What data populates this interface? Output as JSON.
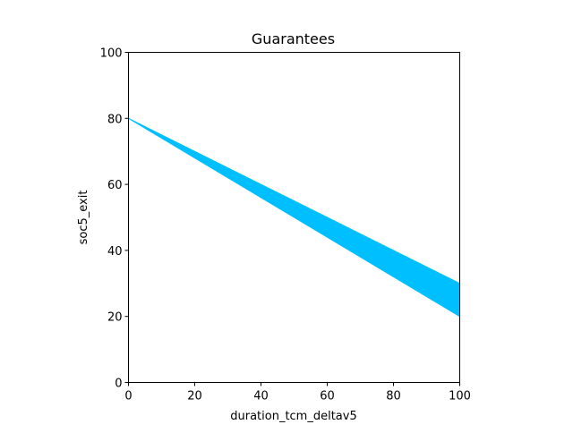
{
  "chart_data": {
    "type": "area",
    "title": "Guarantees",
    "xlabel": "duration_tcm_deltav5",
    "ylabel": "soc5_exit",
    "xlim": [
      0,
      100
    ],
    "ylim": [
      0,
      100
    ],
    "xticks": [
      0,
      20,
      40,
      60,
      80,
      100
    ],
    "yticks": [
      0,
      20,
      40,
      60,
      80,
      100
    ],
    "grid": false,
    "series": [
      {
        "kind": "band",
        "color": "#00bfff",
        "x": [
          0,
          100
        ],
        "upper": [
          80,
          30
        ],
        "lower": [
          80,
          20
        ]
      }
    ]
  }
}
